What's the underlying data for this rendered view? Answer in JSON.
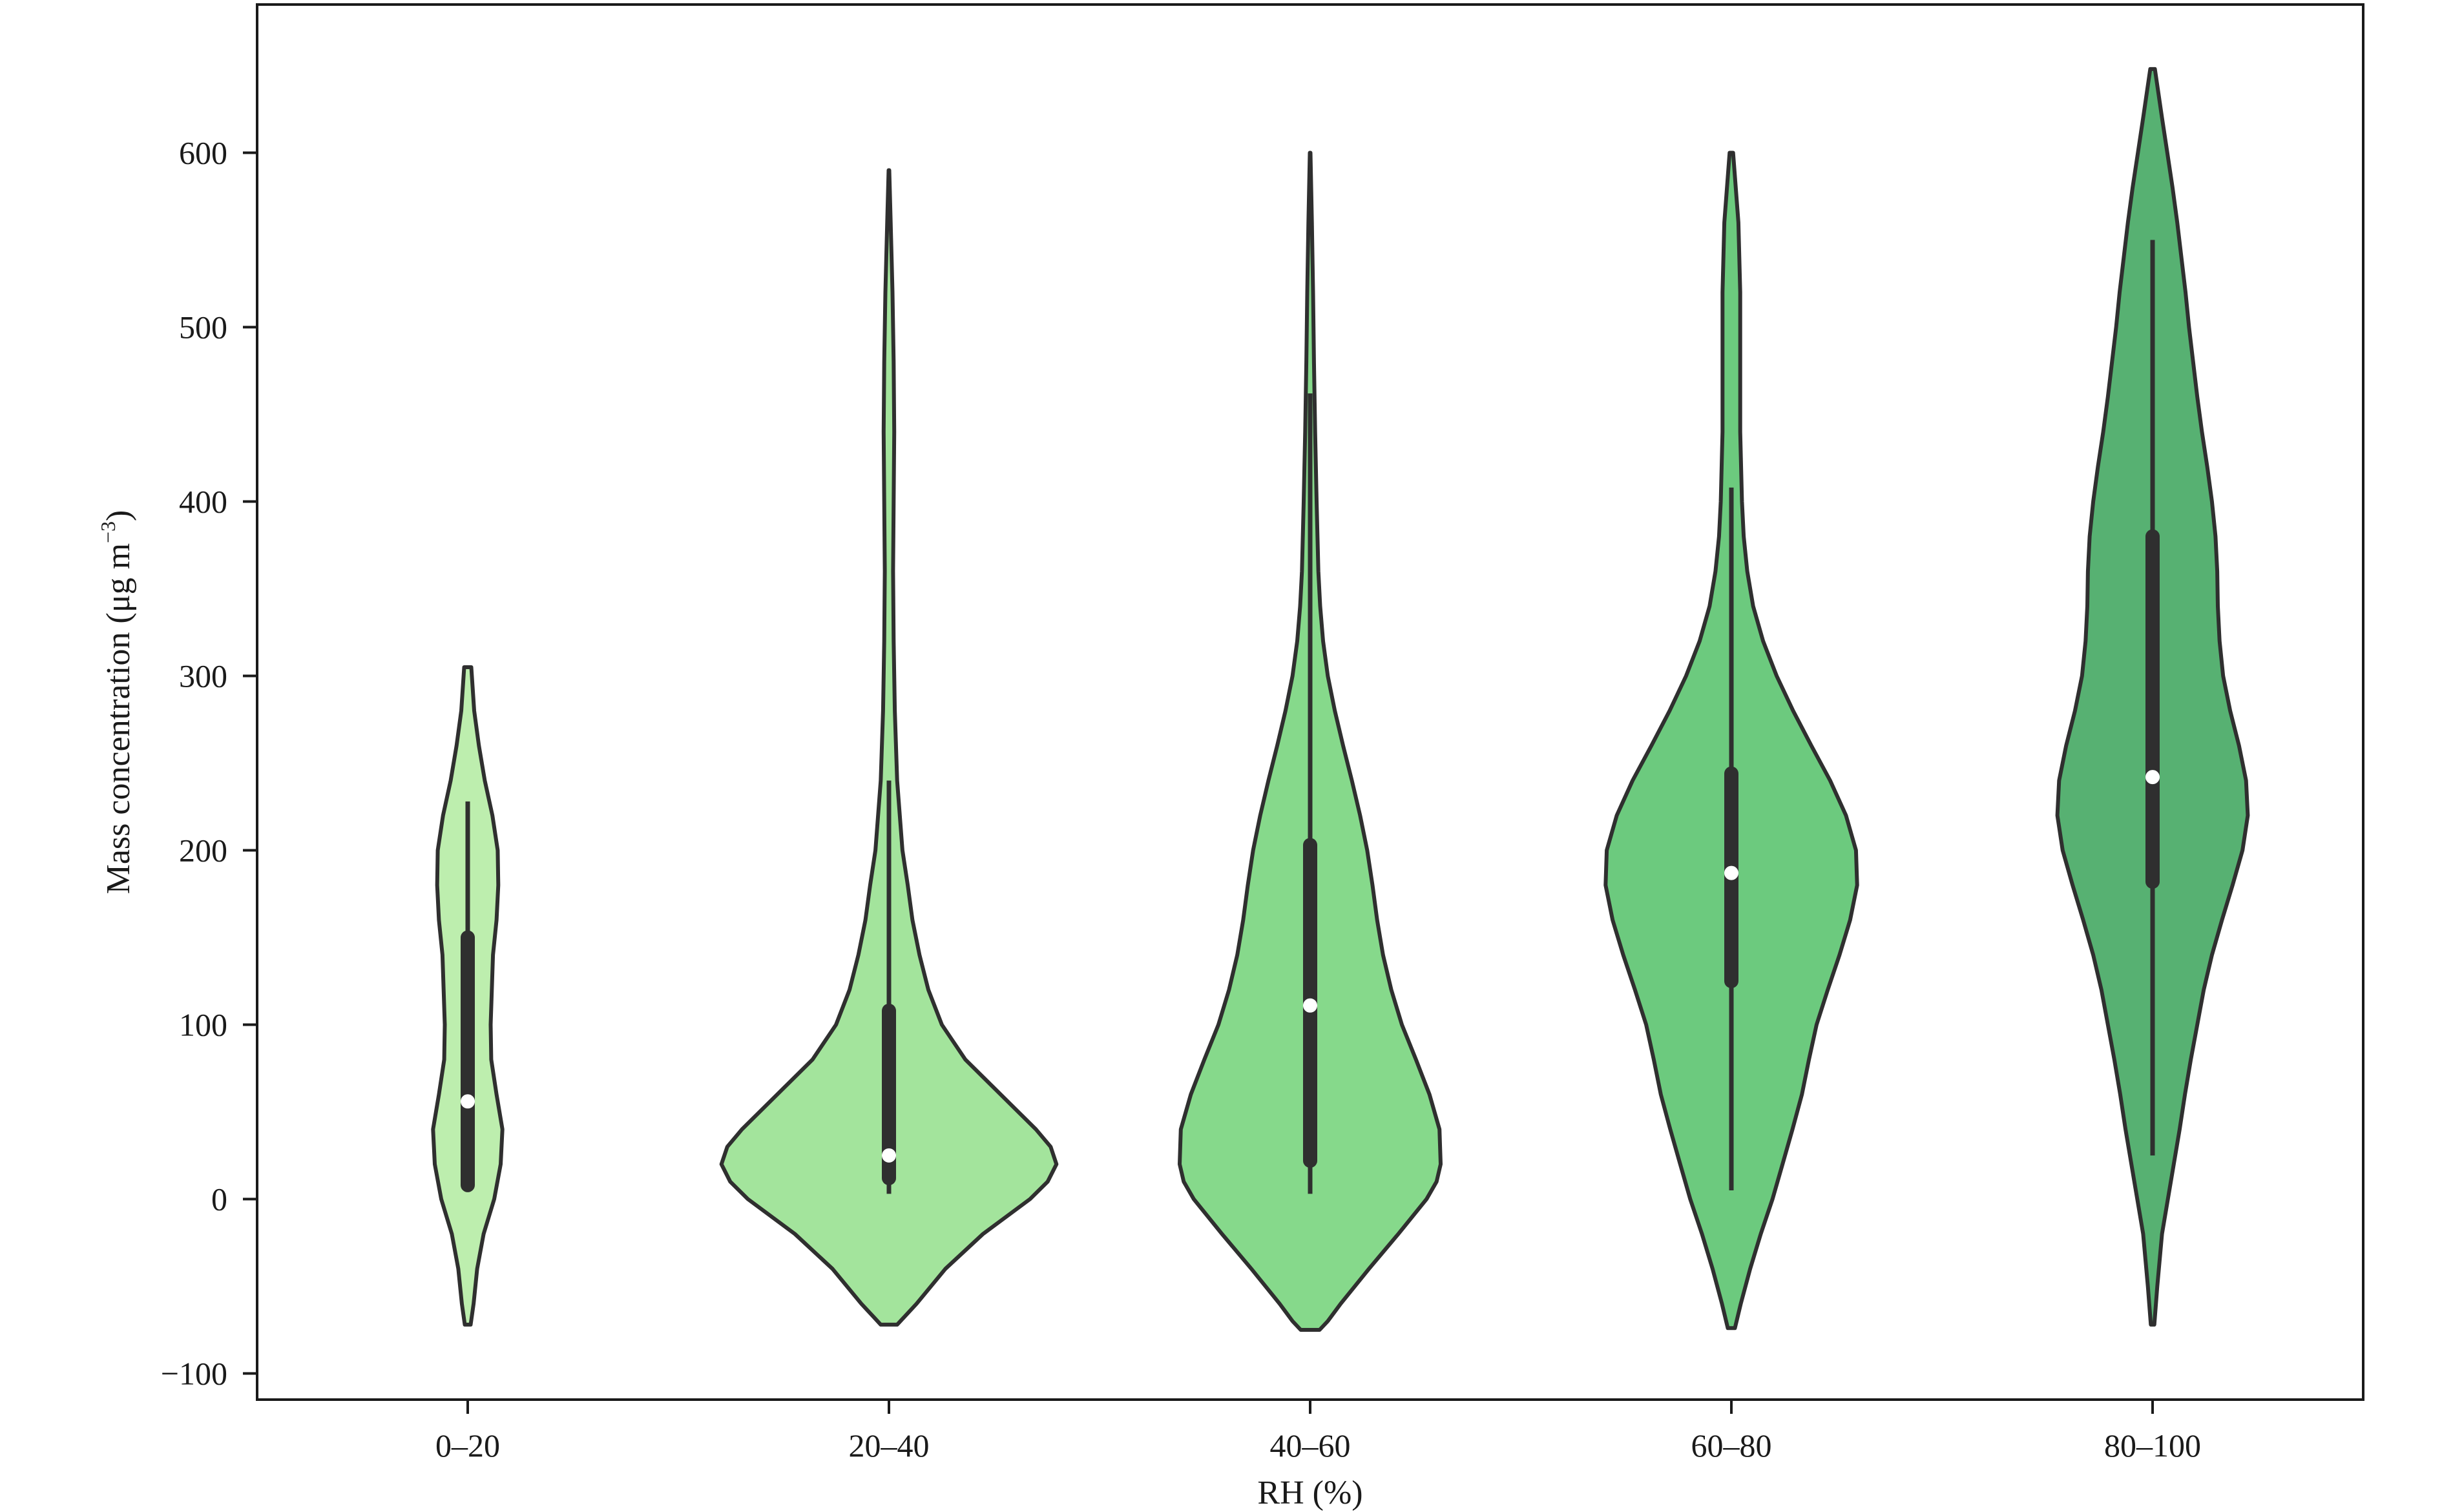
{
  "chart_data": {
    "type": "violin",
    "xlabel": "RH (%)",
    "ylabel": {
      "main": "Mass concentration (μg m",
      "superscript": "−3",
      "close": ")"
    },
    "ylim": [
      -115,
      685
    ],
    "y_ticks": [
      -100,
      0,
      100,
      200,
      300,
      400,
      500,
      600
    ],
    "y_tick_labels": [
      "−100",
      "0",
      "100",
      "200",
      "300",
      "400",
      "500",
      "600"
    ],
    "categories": [
      "0–20",
      "20–40",
      "40–60",
      "60–80",
      "80–100"
    ],
    "colors": [
      "#bdeeae",
      "#a3e49c",
      "#86d98b",
      "#6cca7e",
      "#57b172"
    ],
    "stroke_color": "#2f2f2f",
    "median_color": "#ffffff",
    "grid": false,
    "legend": "none",
    "violins": [
      {
        "category": "0–20",
        "min": 5,
        "q1": 8,
        "median": 56,
        "q3": 150,
        "max": 228,
        "kde_top": 305,
        "kde_bottom": -72,
        "profile": [
          [
            -72,
            0.5
          ],
          [
            -60,
            1
          ],
          [
            -40,
            1.6
          ],
          [
            -20,
            2.7
          ],
          [
            0,
            4.5
          ],
          [
            20,
            5.6
          ],
          [
            40,
            5.9
          ],
          [
            60,
            4.9
          ],
          [
            80,
            4.0
          ],
          [
            100,
            3.9
          ],
          [
            120,
            4.1
          ],
          [
            140,
            4.3
          ],
          [
            160,
            4.9
          ],
          [
            180,
            5.2
          ],
          [
            200,
            5.1
          ],
          [
            220,
            4.2
          ],
          [
            240,
            2.9
          ],
          [
            260,
            1.9
          ],
          [
            280,
            1.1
          ],
          [
            305,
            0.6
          ]
        ]
      },
      {
        "category": "20–40",
        "min": 3,
        "q1": 12,
        "median": 25,
        "q3": 108,
        "max": 240,
        "kde_top": 590,
        "kde_bottom": -72,
        "profile": [
          [
            -72,
            1.4
          ],
          [
            -68,
            2.5
          ],
          [
            -60,
            4.7
          ],
          [
            -40,
            9.6
          ],
          [
            -20,
            16
          ],
          [
            0,
            24
          ],
          [
            10,
            27
          ],
          [
            20,
            28.5
          ],
          [
            30,
            27.5
          ],
          [
            40,
            25
          ],
          [
            60,
            19
          ],
          [
            80,
            13
          ],
          [
            100,
            9
          ],
          [
            120,
            6.7
          ],
          [
            140,
            5.2
          ],
          [
            160,
            4.0
          ],
          [
            180,
            3.2
          ],
          [
            200,
            2.3
          ],
          [
            240,
            1.4
          ],
          [
            280,
            1.0
          ],
          [
            320,
            0.8
          ],
          [
            360,
            0.7
          ],
          [
            400,
            0.8
          ],
          [
            440,
            0.9
          ],
          [
            480,
            0.8
          ],
          [
            520,
            0.6
          ],
          [
            560,
            0.3
          ],
          [
            590,
            0.05
          ]
        ]
      },
      {
        "category": "40–60",
        "min": 3,
        "q1": 22,
        "median": 111,
        "q3": 203,
        "max": 462,
        "kde_top": 600,
        "kde_bottom": -75,
        "profile": [
          [
            -75,
            1.6
          ],
          [
            -70,
            3
          ],
          [
            -60,
            5.2
          ],
          [
            -40,
            10
          ],
          [
            -20,
            15
          ],
          [
            0,
            19.8
          ],
          [
            10,
            21.5
          ],
          [
            20,
            22.2
          ],
          [
            40,
            22
          ],
          [
            60,
            20.3
          ],
          [
            80,
            18
          ],
          [
            100,
            15.6
          ],
          [
            120,
            13.8
          ],
          [
            140,
            12.4
          ],
          [
            160,
            11.4
          ],
          [
            180,
            10.6
          ],
          [
            200,
            9.7
          ],
          [
            220,
            8.5
          ],
          [
            240,
            7.1
          ],
          [
            260,
            5.6
          ],
          [
            280,
            4.2
          ],
          [
            300,
            3
          ],
          [
            320,
            2.2
          ],
          [
            340,
            1.7
          ],
          [
            360,
            1.4
          ],
          [
            400,
            1.1
          ],
          [
            440,
            0.85
          ],
          [
            480,
            0.65
          ],
          [
            520,
            0.5
          ],
          [
            560,
            0.3
          ],
          [
            600,
            0.05
          ]
        ]
      },
      {
        "category": "60–80",
        "min": 5,
        "q1": 125,
        "median": 187,
        "q3": 244,
        "max": 408,
        "kde_top": 602,
        "kde_bottom": -74,
        "profile": [
          [
            -74,
            0.6
          ],
          [
            -60,
            1.6
          ],
          [
            -40,
            3.2
          ],
          [
            -20,
            5
          ],
          [
            0,
            7
          ],
          [
            20,
            8.7
          ],
          [
            40,
            10.4
          ],
          [
            60,
            12
          ],
          [
            80,
            13.2
          ],
          [
            100,
            14.5
          ],
          [
            120,
            16.4
          ],
          [
            140,
            18.4
          ],
          [
            160,
            20.2
          ],
          [
            180,
            21.4
          ],
          [
            200,
            21.2
          ],
          [
            220,
            19.5
          ],
          [
            240,
            16.8
          ],
          [
            260,
            13.6
          ],
          [
            280,
            10.5
          ],
          [
            300,
            7.7
          ],
          [
            320,
            5.4
          ],
          [
            340,
            3.7
          ],
          [
            360,
            2.7
          ],
          [
            380,
            2.1
          ],
          [
            400,
            1.8
          ],
          [
            440,
            1.5
          ],
          [
            480,
            1.5
          ],
          [
            520,
            1.5
          ],
          [
            560,
            1.2
          ],
          [
            600,
            0.3
          ]
        ]
      },
      {
        "category": "80–100",
        "min": 25,
        "q1": 182,
        "median": 242,
        "q3": 380,
        "max": 550,
        "kde_top": 648,
        "kde_bottom": -72,
        "profile": [
          [
            -72,
            0.3
          ],
          [
            -50,
            0.8
          ],
          [
            -20,
            1.6
          ],
          [
            0,
            2.6
          ],
          [
            20,
            3.6
          ],
          [
            40,
            4.6
          ],
          [
            60,
            5.5
          ],
          [
            80,
            6.5
          ],
          [
            100,
            7.6
          ],
          [
            120,
            8.7
          ],
          [
            140,
            10.1
          ],
          [
            160,
            11.8
          ],
          [
            180,
            13.6
          ],
          [
            200,
            15.3
          ],
          [
            220,
            16.2
          ],
          [
            240,
            15.9
          ],
          [
            260,
            14.7
          ],
          [
            280,
            13.2
          ],
          [
            300,
            12
          ],
          [
            320,
            11.4
          ],
          [
            340,
            11.1
          ],
          [
            360,
            11
          ],
          [
            380,
            10.7
          ],
          [
            400,
            10.1
          ],
          [
            420,
            9.3
          ],
          [
            440,
            8.4
          ],
          [
            460,
            7.6
          ],
          [
            480,
            6.9
          ],
          [
            500,
            6.2
          ],
          [
            520,
            5.6
          ],
          [
            540,
            4.9
          ],
          [
            560,
            4.2
          ],
          [
            580,
            3.4
          ],
          [
            600,
            2.5
          ],
          [
            620,
            1.6
          ],
          [
            648,
            0.4
          ]
        ]
      }
    ]
  }
}
